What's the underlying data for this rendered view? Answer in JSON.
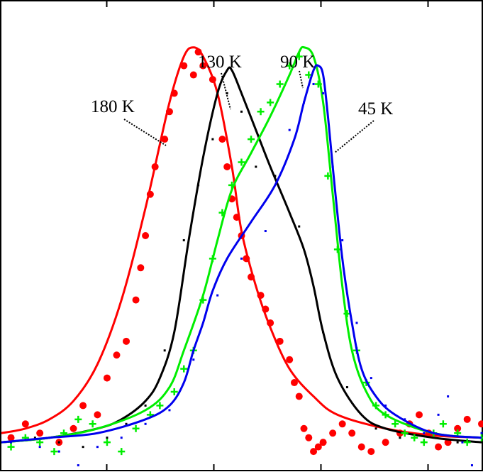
{
  "chart_data": {
    "type": "line",
    "title": "",
    "xlabel": "",
    "ylabel": "",
    "xlim": [
      0,
      100
    ],
    "ylim": [
      -2,
      100
    ],
    "grid": false,
    "legend": "none",
    "series": [
      {
        "name": "180 K",
        "color": "#ff0000",
        "marker": "filled-circle",
        "fit": [
          [
            0,
            6
          ],
          [
            5,
            7
          ],
          [
            10,
            9
          ],
          [
            15,
            13
          ],
          [
            20,
            21
          ],
          [
            25,
            35
          ],
          [
            30,
            55
          ],
          [
            35,
            78
          ],
          [
            38,
            88
          ],
          [
            40,
            90
          ],
          [
            42,
            88
          ],
          [
            45,
            80
          ],
          [
            48,
            64
          ],
          [
            50,
            50
          ],
          [
            53,
            38
          ],
          [
            56,
            29
          ],
          [
            60,
            20
          ],
          [
            65,
            14
          ],
          [
            70,
            10
          ],
          [
            80,
            7
          ],
          [
            90,
            5.5
          ],
          [
            100,
            5
          ]
        ],
        "points": [
          [
            2,
            5
          ],
          [
            5,
            8
          ],
          [
            8,
            6
          ],
          [
            12,
            4
          ],
          [
            15,
            7
          ],
          [
            17,
            12
          ],
          [
            20,
            10
          ],
          [
            22,
            18
          ],
          [
            24,
            23
          ],
          [
            26,
            26
          ],
          [
            28,
            35
          ],
          [
            29,
            42
          ],
          [
            30,
            49
          ],
          [
            31,
            58
          ],
          [
            32,
            64
          ],
          [
            34,
            70
          ],
          [
            35,
            76
          ],
          [
            36,
            80
          ],
          [
            38,
            86
          ],
          [
            40,
            84
          ],
          [
            41,
            89
          ],
          [
            42,
            86
          ],
          [
            44,
            83
          ],
          [
            46,
            70
          ],
          [
            47,
            64
          ],
          [
            48,
            57
          ],
          [
            49,
            53
          ],
          [
            50,
            49
          ],
          [
            51,
            44
          ],
          [
            52,
            40
          ],
          [
            54,
            36
          ],
          [
            55,
            33
          ],
          [
            56,
            30
          ],
          [
            58,
            26
          ],
          [
            60,
            22
          ],
          [
            61,
            17
          ],
          [
            62,
            14
          ],
          [
            63,
            7
          ],
          [
            64,
            5
          ],
          [
            65,
            2
          ],
          [
            66,
            3
          ],
          [
            67,
            4
          ],
          [
            69,
            6
          ],
          [
            71,
            8
          ],
          [
            73,
            6
          ],
          [
            75,
            3
          ],
          [
            77,
            2
          ],
          [
            80,
            4
          ],
          [
            83,
            6
          ],
          [
            85,
            8
          ],
          [
            87,
            10
          ],
          [
            89,
            6
          ],
          [
            91,
            3
          ],
          [
            93,
            4
          ],
          [
            95,
            7
          ],
          [
            97,
            9
          ],
          [
            100,
            8
          ]
        ]
      },
      {
        "name": "130 K",
        "color": "#000000",
        "marker": "dot",
        "fit": [
          [
            0,
            4
          ],
          [
            10,
            5
          ],
          [
            20,
            7
          ],
          [
            25,
            9
          ],
          [
            30,
            13
          ],
          [
            33,
            18
          ],
          [
            36,
            28
          ],
          [
            39,
            48
          ],
          [
            42,
            66
          ],
          [
            45,
            80
          ],
          [
            47,
            85
          ],
          [
            48,
            85
          ],
          [
            50,
            80
          ],
          [
            53,
            72
          ],
          [
            56,
            64
          ],
          [
            60,
            54
          ],
          [
            63,
            46
          ],
          [
            65,
            38
          ],
          [
            67,
            28
          ],
          [
            70,
            18
          ],
          [
            75,
            10
          ],
          [
            80,
            7
          ],
          [
            90,
            5
          ],
          [
            100,
            4
          ]
        ],
        "points": [
          [
            2,
            4
          ],
          [
            7,
            5
          ],
          [
            12,
            4
          ],
          [
            17,
            3
          ],
          [
            22,
            5
          ],
          [
            26,
            8
          ],
          [
            30,
            12
          ],
          [
            34,
            24
          ],
          [
            38,
            48
          ],
          [
            41,
            60
          ],
          [
            44,
            70
          ],
          [
            47,
            80
          ],
          [
            50,
            76
          ],
          [
            53,
            64
          ],
          [
            57,
            62
          ],
          [
            62,
            51
          ],
          [
            67,
            28
          ],
          [
            72,
            16
          ],
          [
            78,
            7
          ],
          [
            83,
            5
          ],
          [
            88,
            4
          ],
          [
            95,
            4
          ]
        ]
      },
      {
        "name": "90 K",
        "color": "#00ee00",
        "marker": "plus",
        "fit": [
          [
            0,
            4
          ],
          [
            10,
            5
          ],
          [
            20,
            7
          ],
          [
            30,
            11
          ],
          [
            35,
            16
          ],
          [
            38,
            24
          ],
          [
            42,
            36
          ],
          [
            45,
            48
          ],
          [
            48,
            59
          ],
          [
            52,
            67
          ],
          [
            56,
            75
          ],
          [
            60,
            84
          ],
          [
            62,
            89
          ],
          [
            63,
            90
          ],
          [
            65,
            88
          ],
          [
            67,
            78
          ],
          [
            69,
            58
          ],
          [
            71,
            38
          ],
          [
            73,
            24
          ],
          [
            76,
            15
          ],
          [
            80,
            10
          ],
          [
            90,
            6
          ],
          [
            100,
            5
          ]
        ],
        "points": [
          [
            2,
            3
          ],
          [
            5,
            5
          ],
          [
            8,
            4
          ],
          [
            11,
            2
          ],
          [
            13,
            6
          ],
          [
            16,
            9
          ],
          [
            19,
            8
          ],
          [
            22,
            4
          ],
          [
            25,
            2
          ],
          [
            28,
            7
          ],
          [
            31,
            10
          ],
          [
            33,
            12
          ],
          [
            36,
            15
          ],
          [
            38,
            20
          ],
          [
            40,
            24
          ],
          [
            42,
            35
          ],
          [
            44,
            44
          ],
          [
            46,
            54
          ],
          [
            48,
            60
          ],
          [
            50,
            65
          ],
          [
            52,
            70
          ],
          [
            54,
            76
          ],
          [
            56,
            78
          ],
          [
            58,
            82
          ],
          [
            60,
            86
          ],
          [
            62,
            88
          ],
          [
            64,
            84
          ],
          [
            66,
            82
          ],
          [
            68,
            62
          ],
          [
            70,
            46
          ],
          [
            72,
            32
          ],
          [
            74,
            24
          ],
          [
            76,
            17
          ],
          [
            78,
            12
          ],
          [
            80,
            10
          ],
          [
            82,
            8
          ],
          [
            84,
            6
          ],
          [
            86,
            5
          ],
          [
            88,
            4
          ],
          [
            90,
            6
          ],
          [
            92,
            8
          ],
          [
            95,
            6
          ],
          [
            97,
            4
          ],
          [
            100,
            5
          ]
        ]
      },
      {
        "name": "45 K",
        "color": "#0000ee",
        "marker": "dot",
        "fit": [
          [
            0,
            4
          ],
          [
            10,
            5
          ],
          [
            20,
            6
          ],
          [
            30,
            9
          ],
          [
            35,
            12
          ],
          [
            38,
            17
          ],
          [
            40,
            24
          ],
          [
            42,
            30
          ],
          [
            44,
            37
          ],
          [
            47,
            44
          ],
          [
            52,
            52
          ],
          [
            57,
            60
          ],
          [
            61,
            70
          ],
          [
            63,
            78
          ],
          [
            65,
            85
          ],
          [
            66,
            86
          ],
          [
            67,
            84
          ],
          [
            68,
            75
          ],
          [
            69,
            64
          ],
          [
            71,
            44
          ],
          [
            73,
            30
          ],
          [
            75,
            20
          ],
          [
            78,
            14
          ],
          [
            82,
            10
          ],
          [
            90,
            6
          ],
          [
            100,
            5
          ]
        ],
        "points": [
          [
            2,
            4
          ],
          [
            8,
            3
          ],
          [
            12,
            2
          ],
          [
            16,
            -1
          ],
          [
            20,
            3
          ],
          [
            25,
            5
          ],
          [
            30,
            8
          ],
          [
            35,
            11
          ],
          [
            40,
            22
          ],
          [
            45,
            36
          ],
          [
            50,
            44
          ],
          [
            55,
            50
          ],
          [
            60,
            72
          ],
          [
            63,
            78
          ],
          [
            65,
            82
          ],
          [
            67,
            80
          ],
          [
            69,
            64
          ],
          [
            71,
            48
          ],
          [
            74,
            30
          ],
          [
            77,
            18
          ],
          [
            80,
            12
          ],
          [
            84,
            9
          ],
          [
            88,
            6
          ],
          [
            91,
            10
          ],
          [
            93,
            14
          ],
          [
            96,
            4
          ],
          [
            98,
            -1
          ],
          [
            100,
            6
          ]
        ]
      }
    ],
    "annotations": [
      {
        "label": "180 K",
        "series": "180 K"
      },
      {
        "label": "130 K",
        "series": "130 K"
      },
      {
        "label": "90 K",
        "series": "90 K"
      },
      {
        "label": "45 K",
        "series": "45 K"
      }
    ]
  }
}
